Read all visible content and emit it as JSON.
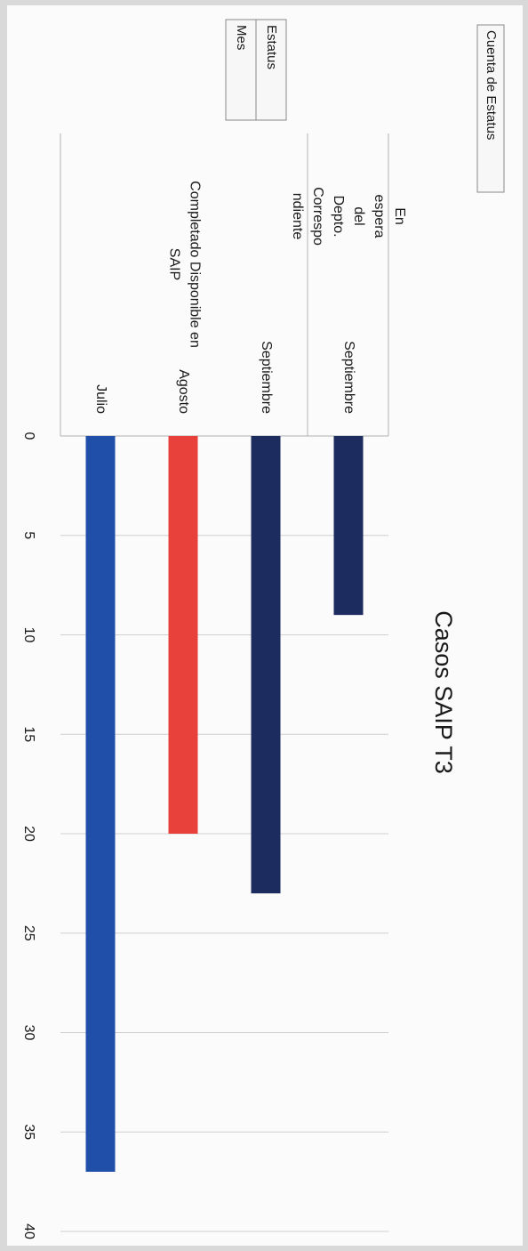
{
  "chart_data": {
    "type": "bar",
    "orientation": "horizontal",
    "title": "Casos SAIP T3",
    "field_buttons": {
      "value_field": "Cuenta de Estatus",
      "row_fields": [
        "Estatus",
        "Mes"
      ]
    },
    "groups": [
      {
        "label_lines": [
          "Completado Disponible en",
          "SAIP"
        ],
        "categories": [
          "Julio",
          "Agosto",
          "Septiembre"
        ]
      },
      {
        "label_lines": [
          "En",
          "espera",
          "del",
          "Depto.",
          "Correspo",
          "ndiente"
        ],
        "categories": [
          "Septiembre"
        ]
      }
    ],
    "bars": [
      {
        "group": 0,
        "category": "Julio",
        "value": 37,
        "color": "#1f4fa8"
      },
      {
        "group": 0,
        "category": "Agosto",
        "value": 20,
        "color": "#e8403a"
      },
      {
        "group": 0,
        "category": "Septiembre",
        "value": 23,
        "color": "#1c2c5e"
      },
      {
        "group": 1,
        "category": "Septiembre",
        "value": 9,
        "color": "#1c2c5e"
      }
    ],
    "value_axis": {
      "min": 0,
      "max": 40,
      "major_unit": 5,
      "tick_labels": [
        "0",
        "5",
        "10",
        "15",
        "20",
        "25",
        "30",
        "35",
        "40"
      ]
    },
    "gridlines": true,
    "legend": "none"
  }
}
